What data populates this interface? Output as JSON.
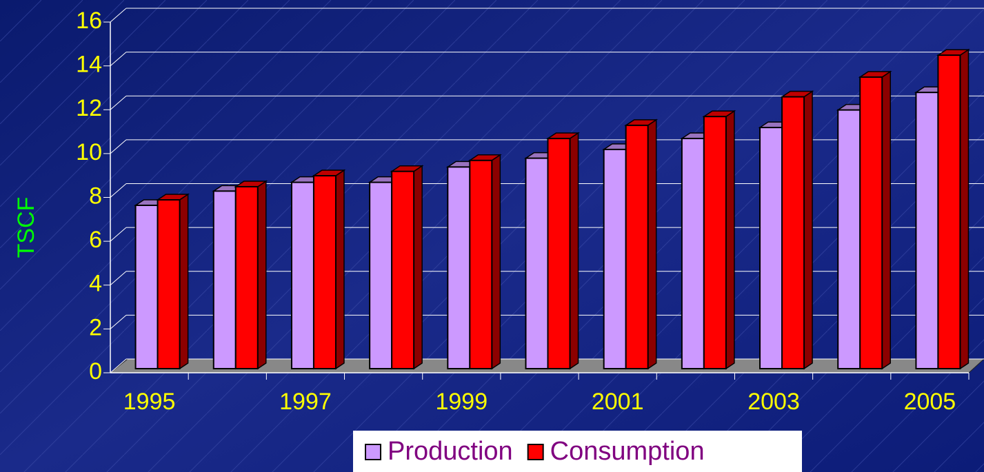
{
  "chart_data": {
    "type": "bar",
    "y_label": "TSCF",
    "categories": [
      "1995",
      null,
      "1997",
      null,
      "1999",
      null,
      "2001",
      null,
      "2003",
      null,
      "2005"
    ],
    "series": [
      {
        "name": "Production",
        "color": "#cc99ff",
        "values": [
          7.45,
          8.1,
          8.5,
          8.5,
          9.2,
          9.6,
          10.0,
          10.5,
          11.0,
          11.8,
          12.6
        ]
      },
      {
        "name": "Consumption",
        "color": "#ff0000",
        "values": [
          7.7,
          8.3,
          8.8,
          9.0,
          9.5,
          10.5,
          11.1,
          11.5,
          12.4,
          13.3,
          14.3
        ]
      }
    ],
    "ylim": [
      0,
      16
    ],
    "yticks": [
      0,
      2,
      4,
      6,
      8,
      10,
      12,
      14,
      16
    ],
    "grid": true,
    "legend": "bottom"
  }
}
